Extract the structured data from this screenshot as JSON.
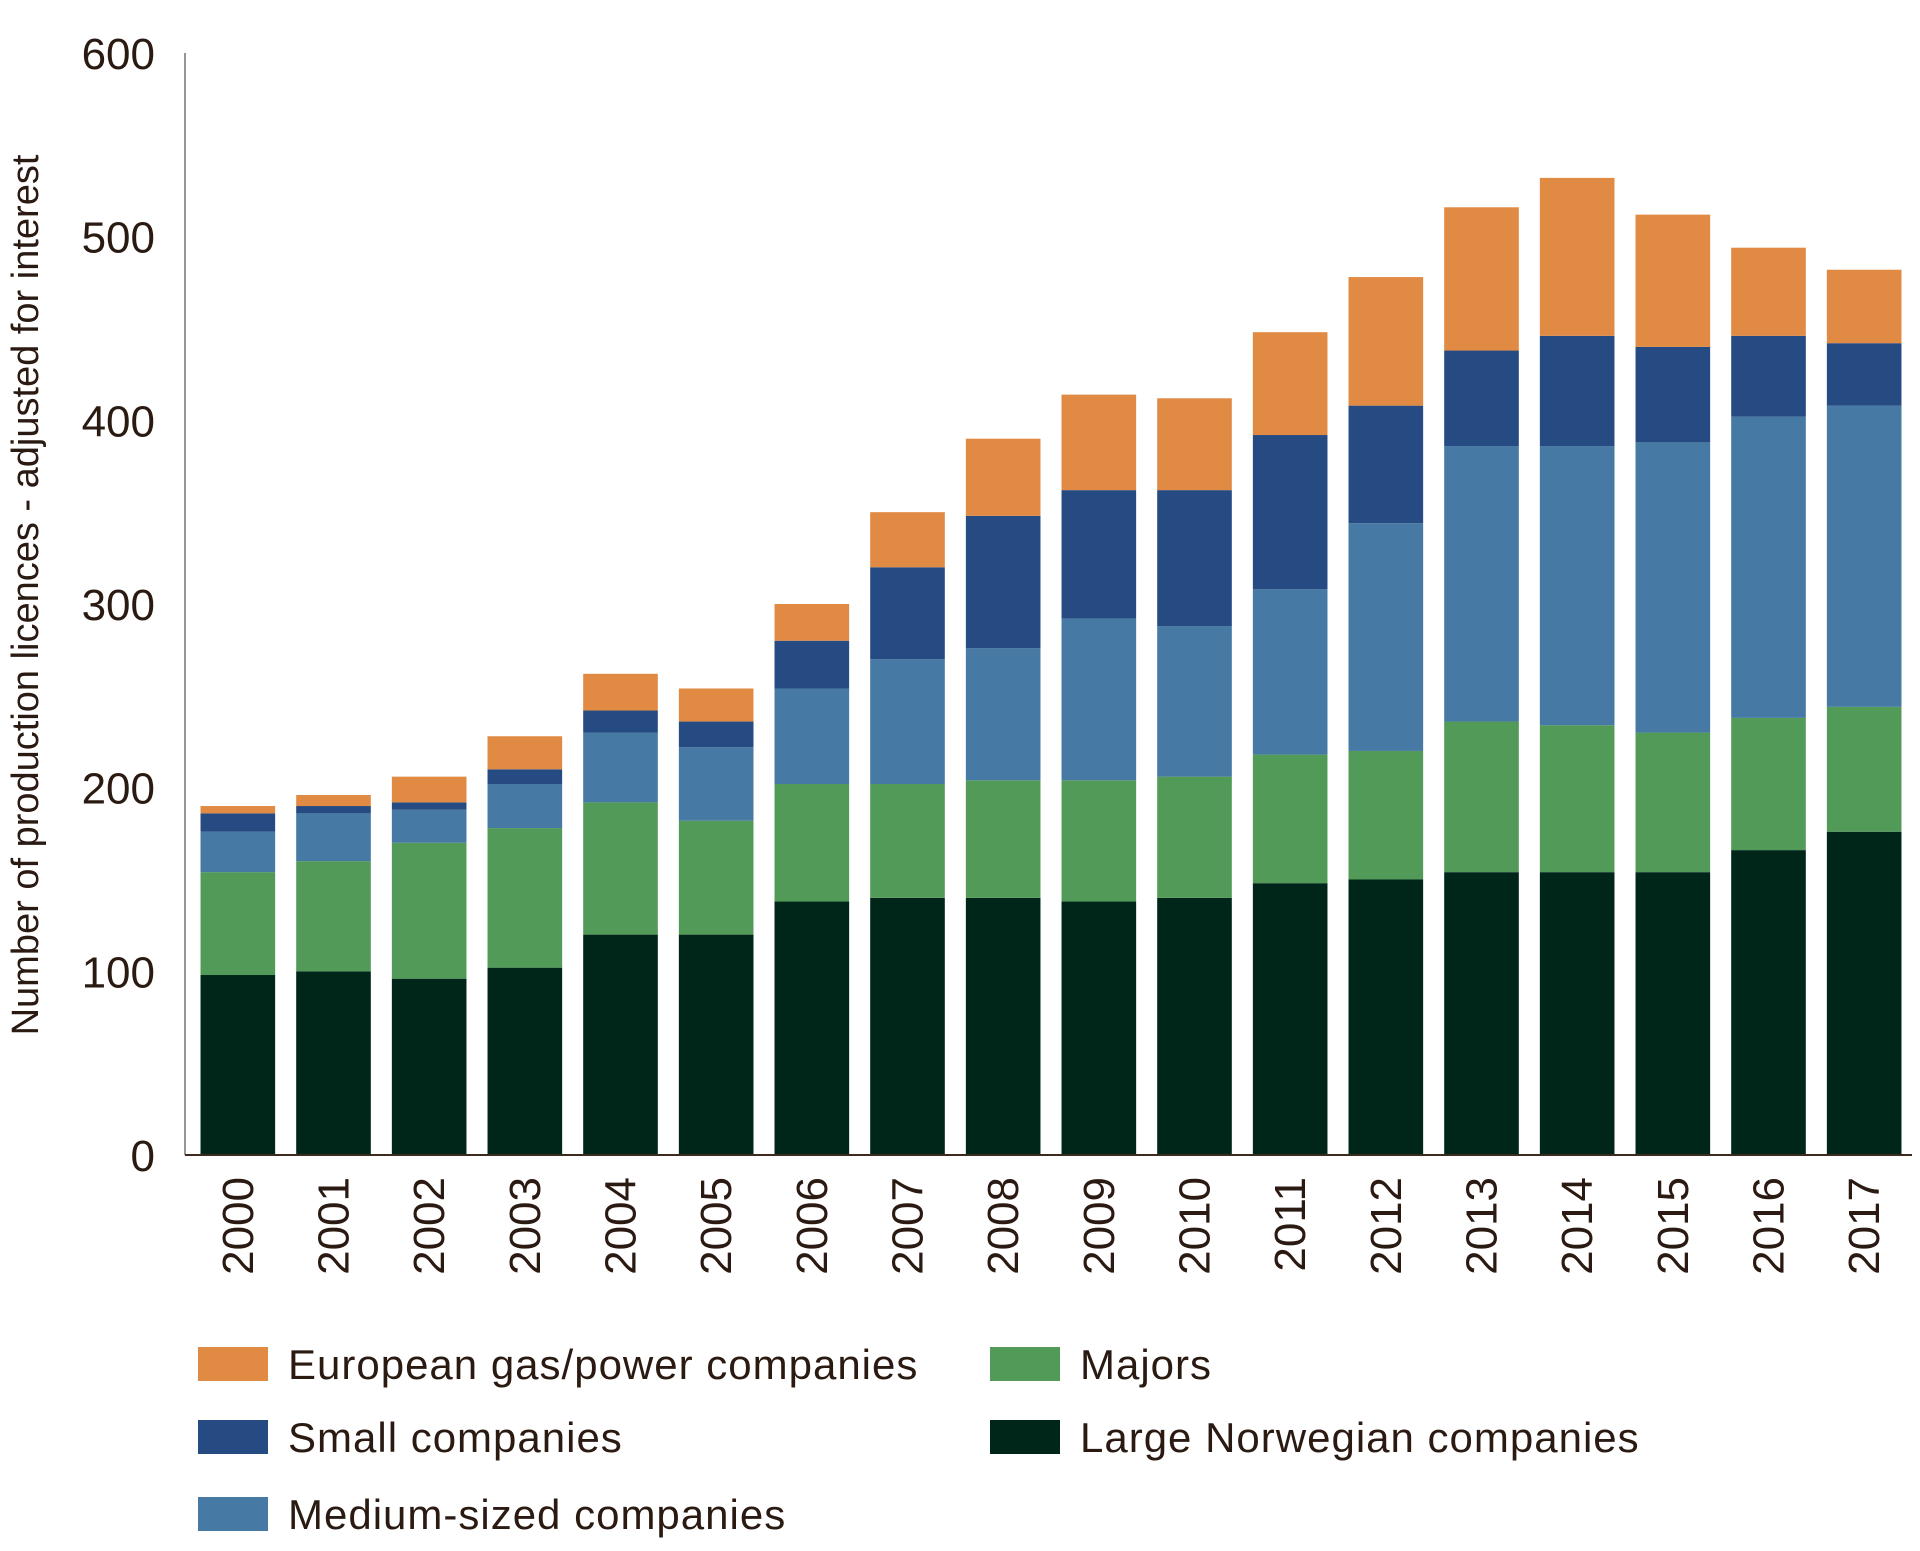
{
  "chart_data": {
    "type": "bar",
    "stacked": true,
    "title": "",
    "xlabel": "",
    "ylabel": "Number of production licences - adjusted for interest",
    "ylim": [
      0,
      600
    ],
    "yticks": [
      0,
      100,
      200,
      300,
      400,
      500,
      600
    ],
    "grid": false,
    "legend_position": "bottom",
    "categories": [
      "2000",
      "2001",
      "2002",
      "2003",
      "2004",
      "2005",
      "2006",
      "2007",
      "2008",
      "2009",
      "2010",
      "2011",
      "2012",
      "2013",
      "2014",
      "2015",
      "2016",
      "2017"
    ],
    "series": [
      {
        "name": "Large Norwegian companies",
        "color": "#00261a",
        "values": [
          98,
          100,
          96,
          102,
          120,
          120,
          138,
          140,
          140,
          138,
          140,
          148,
          150,
          154,
          154,
          154,
          166,
          176
        ]
      },
      {
        "name": "Majors",
        "color": "#519a58",
        "values": [
          56,
          60,
          74,
          76,
          72,
          62,
          64,
          62,
          64,
          66,
          66,
          70,
          70,
          82,
          80,
          76,
          72,
          68
        ]
      },
      {
        "name": "Medium-sized companies",
        "color": "#4679a3",
        "values": [
          22,
          26,
          18,
          24,
          38,
          40,
          52,
          68,
          72,
          88,
          82,
          90,
          124,
          150,
          152,
          158,
          164,
          164
        ]
      },
      {
        "name": "Small companies",
        "color": "#264b82",
        "values": [
          10,
          4,
          4,
          8,
          12,
          14,
          26,
          50,
          72,
          70,
          74,
          84,
          64,
          52,
          60,
          52,
          44,
          34
        ]
      },
      {
        "name": "European gas/power companies",
        "color": "#e08a44",
        "values": [
          4,
          6,
          14,
          18,
          20,
          18,
          20,
          30,
          42,
          52,
          50,
          56,
          70,
          78,
          86,
          72,
          48,
          40
        ]
      }
    ],
    "legend_order": [
      "European gas/power companies",
      "Majors",
      "Small companies",
      "Large Norwegian companies",
      "Medium-sized companies"
    ]
  }
}
